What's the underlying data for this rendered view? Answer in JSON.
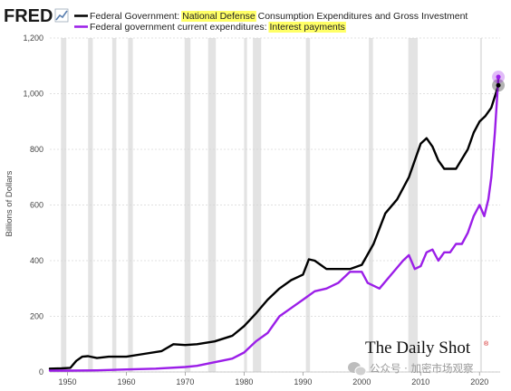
{
  "header": {
    "logo": "FRED",
    "logo_icon": "line-chart-icon",
    "legend": [
      {
        "prefix": "Federal Government: ",
        "highlight": "National Defense",
        "suffix": " Consumption Expenditures and Gross Investment",
        "color": "#000000"
      },
      {
        "prefix": "Federal government current expenditures: ",
        "highlight": "Interest payments",
        "suffix": "",
        "color": "#9b1ee8"
      }
    ],
    "highlight_color": "#ffff66"
  },
  "footer": {
    "brand": "The Daily Shot",
    "brand_mark": "®",
    "watermark": "公众号 · 加密市场观察",
    "watermark_icon": "wechat-icon"
  },
  "chart_data": {
    "type": "line",
    "title": "",
    "xlabel": "",
    "ylabel": "Billions of Dollars",
    "xlim": [
      1947,
      2023.5
    ],
    "ylim": [
      0,
      1200
    ],
    "xticks": [
      1950,
      1960,
      1970,
      1980,
      1990,
      2000,
      2010,
      2020
    ],
    "yticks": [
      0,
      200,
      400,
      600,
      800,
      1000,
      1200
    ],
    "ytick_labels": [
      "0",
      "200",
      "400",
      "600",
      "800",
      "1,000",
      "1,200"
    ],
    "grid": true,
    "legend": "top-left",
    "recessions": [
      [
        1948.9,
        1949.8
      ],
      [
        1953.5,
        1954.3
      ],
      [
        1957.6,
        1958.3
      ],
      [
        1960.3,
        1961.1
      ],
      [
        1969.9,
        1970.9
      ],
      [
        1973.9,
        1975.2
      ],
      [
        1980.0,
        1980.5
      ],
      [
        1981.5,
        1982.9
      ],
      [
        1990.5,
        1991.2
      ],
      [
        2001.2,
        2001.9
      ],
      [
        2007.9,
        2009.5
      ],
      [
        2020.1,
        2020.4
      ]
    ],
    "series": [
      {
        "name": "Federal Government: National Defense Consumption Expenditures and Gross Investment",
        "color": "#000000",
        "x": [
          1947,
          1949,
          1950.5,
          1951.5,
          1952.5,
          1953.5,
          1955,
          1957,
          1960,
          1963,
          1966,
          1968,
          1970,
          1972,
          1975,
          1978,
          1980,
          1982,
          1984,
          1986,
          1988,
          1990,
          1991,
          1992,
          1994,
          1996,
          1998,
          2000,
          2002,
          2004,
          2006,
          2008,
          2010,
          2011,
          2012,
          2013,
          2014,
          2016,
          2018,
          2019,
          2020,
          2021,
          2022,
          2023.2
        ],
        "y": [
          12,
          13,
          15,
          40,
          55,
          57,
          50,
          55,
          55,
          65,
          75,
          100,
          97,
          100,
          110,
          130,
          165,
          210,
          260,
          300,
          330,
          350,
          405,
          400,
          370,
          370,
          370,
          385,
          460,
          570,
          620,
          700,
          820,
          840,
          810,
          760,
          730,
          730,
          800,
          860,
          900,
          920,
          950,
          1030
        ]
      },
      {
        "name": "Federal government current expenditures: Interest payments",
        "color": "#9b1ee8",
        "x": [
          1947,
          1950,
          1955,
          1960,
          1965,
          1970,
          1972,
          1975,
          1978,
          1980,
          1982,
          1984,
          1986,
          1988,
          1990,
          1992,
          1994,
          1996,
          1998,
          2000,
          2001,
          2003,
          2005,
          2007,
          2008,
          2009,
          2010,
          2011,
          2012,
          2013,
          2014,
          2015,
          2016,
          2017,
          2018,
          2019,
          2020,
          2020.8,
          2021.5,
          2022,
          2022.6,
          2023.2
        ],
        "y": [
          5,
          5,
          6,
          9,
          12,
          18,
          22,
          35,
          48,
          70,
          110,
          140,
          200,
          230,
          260,
          290,
          300,
          320,
          360,
          360,
          320,
          300,
          350,
          400,
          420,
          370,
          380,
          430,
          440,
          400,
          430,
          430,
          460,
          460,
          500,
          560,
          600,
          560,
          620,
          700,
          860,
          1060
        ]
      }
    ]
  }
}
